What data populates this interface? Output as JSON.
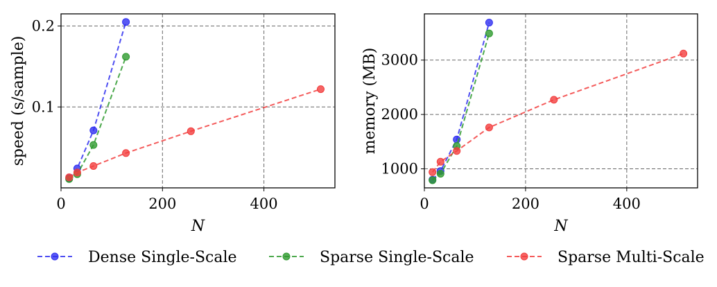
{
  "chart_data": [
    {
      "type": "line",
      "id": "speed",
      "xlabel": "N",
      "ylabel": "speed (s/sample)",
      "xlim": [
        0,
        540
      ],
      "ylim": [
        0.0,
        0.215
      ],
      "xticks": [
        0,
        200,
        400
      ],
      "xtick_labels": [
        "0",
        "200",
        "400"
      ],
      "yticks": [
        0.1,
        0.2
      ],
      "ytick_labels": [
        "0.1",
        "0.2"
      ],
      "grid": true,
      "series": [
        {
          "name": "Dense Single-Scale",
          "color": "#2f2ff0",
          "x": [
            16,
            32,
            64,
            128
          ],
          "values": [
            0.012,
            0.024,
            0.071,
            0.205
          ]
        },
        {
          "name": "Sparse Single-Scale",
          "color": "#2e9a2e",
          "x": [
            16,
            32,
            64,
            128
          ],
          "values": [
            0.011,
            0.017,
            0.053,
            0.162
          ]
        },
        {
          "name": "Sparse Multi-Scale",
          "color": "#f23d3d",
          "x": [
            16,
            32,
            64,
            128,
            256,
            512
          ],
          "values": [
            0.013,
            0.019,
            0.027,
            0.043,
            0.07,
            0.122
          ]
        }
      ]
    },
    {
      "type": "line",
      "id": "memory",
      "xlabel": "N",
      "ylabel": "memory (MB)",
      "xlim": [
        0,
        540
      ],
      "ylim": [
        650,
        3850
      ],
      "xticks": [
        0,
        200,
        400
      ],
      "xtick_labels": [
        "0",
        "200",
        "400"
      ],
      "yticks": [
        1000,
        2000,
        3000
      ],
      "ytick_labels": [
        "1000",
        "2000",
        "3000"
      ],
      "grid": true,
      "series": [
        {
          "name": "Dense Single-Scale",
          "color": "#2f2ff0",
          "x": [
            16,
            32,
            64,
            128
          ],
          "values": [
            800,
            960,
            1540,
            3690
          ]
        },
        {
          "name": "Sparse Single-Scale",
          "color": "#2e9a2e",
          "x": [
            16,
            32,
            64,
            128
          ],
          "values": [
            790,
            910,
            1420,
            3490
          ]
        },
        {
          "name": "Sparse Multi-Scale",
          "color": "#f23d3d",
          "x": [
            16,
            32,
            64,
            128,
            256,
            512
          ],
          "values": [
            940,
            1130,
            1330,
            1760,
            2270,
            3120
          ]
        }
      ]
    }
  ],
  "legend": {
    "position": "bottom-center",
    "items": [
      "Dense Single-Scale",
      "Sparse Single-Scale",
      "Sparse Multi-Scale"
    ]
  }
}
